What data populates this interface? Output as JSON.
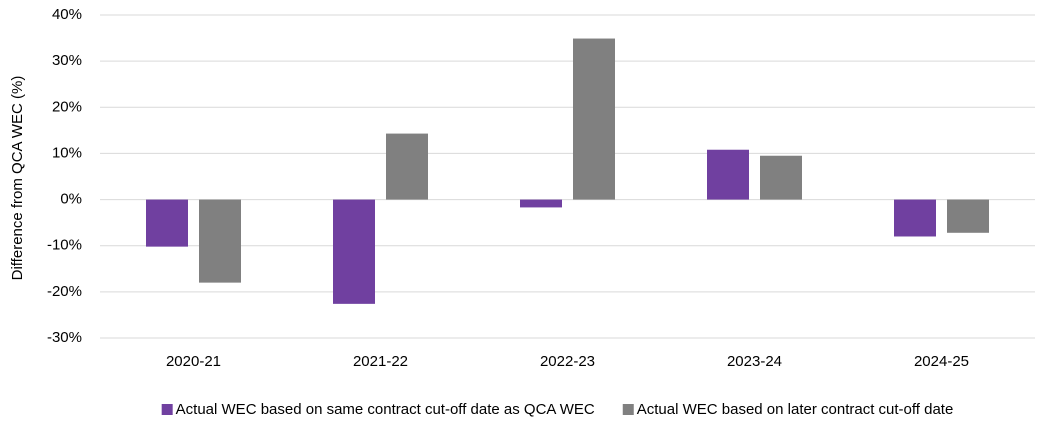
{
  "chart_data": {
    "type": "bar",
    "y_label": "Difference from QCA WEC (%)",
    "categories": [
      "2020-21",
      "2021-22",
      "2022-23",
      "2023-24",
      "2024-25"
    ],
    "series": [
      {
        "name": "Actual WEC based on same contract cut-off date as QCA WEC",
        "color": "#7040a0",
        "values": [
          -10.2,
          -22.6,
          -1.7,
          10.8,
          -8.0
        ]
      },
      {
        "name": "Actual WEC based on later contract cut-off date",
        "color": "#808080",
        "values": [
          -18.0,
          14.3,
          34.9,
          9.5,
          -7.2
        ]
      }
    ],
    "ylim": [
      -30,
      40
    ],
    "yticks": [
      {
        "value": -30,
        "label": "-30%"
      },
      {
        "value": -20,
        "label": "-20%"
      },
      {
        "value": -10,
        "label": "-10%"
      },
      {
        "value": 0,
        "label": "0%"
      },
      {
        "value": 10,
        "label": "10%"
      },
      {
        "value": 20,
        "label": "20%"
      },
      {
        "value": 30,
        "label": "30%"
      },
      {
        "value": 40,
        "label": "40%"
      }
    ],
    "grid": true,
    "legend": "bottom"
  }
}
